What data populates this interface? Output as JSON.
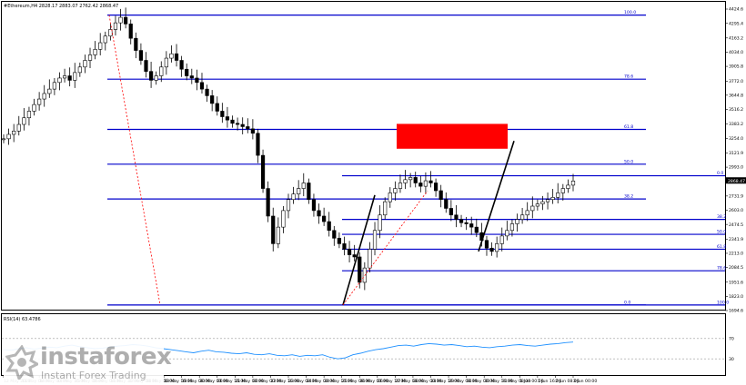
{
  "header": {
    "symbol_text": "#Ethereum,H4  2828.17 2883.07 2762.42 2868.47",
    "rsi_text": "RSI(14) 63.4786"
  },
  "chart_data": [
    {
      "type": "candlestick",
      "title": "",
      "y_ticks": [
        4424.6,
        4295.4,
        4163.2,
        4034.0,
        3905.8,
        3772.0,
        3644.8,
        3516.2,
        3383.2,
        3254.0,
        3121.9,
        2993.0,
        2864.0,
        2731.9,
        2603.0,
        2474.5,
        2341.9,
        2213.0,
        2084.5,
        1951.6,
        1823.0,
        1694.6
      ],
      "x_tick_labels": [
        "12 May 2021",
        "13 May 08:00",
        "14 May 00:00",
        "14 May 16:00",
        "15 May 08:00",
        "16 May 00:00",
        "16 May 16:00",
        "17 May 08:00",
        "18 May 00:00",
        "18 May 16:00",
        "19 May 08:00",
        "20 May 00:00",
        "20 May 16:00",
        "21 May 08:00",
        "22 May 00:00",
        "22 May 16:00",
        "23 May 08:00",
        "24 May 00:00",
        "24 May 16:00",
        "25 May 08:00",
        "26 May 00:00",
        "26 May 16:00",
        "27 May 08:00",
        "28 May 00:00",
        "28 May 16:00",
        "29 May 08:00",
        "30 May 00:00",
        "30 May 16:00",
        "31 May 08:00",
        "1 Jun 00:00",
        "1 Jun 16:00",
        "2 Jun 08:00",
        "3 Jun 00:00"
      ],
      "ylim": [
        1694.6,
        4424.6
      ],
      "current_price": 2868.47,
      "close_series": [
        3250,
        3290,
        3320,
        3380,
        3440,
        3500,
        3560,
        3610,
        3660,
        3700,
        3760,
        3800,
        3820,
        3780,
        3850,
        3900,
        3960,
        4010,
        4060,
        4120,
        4180,
        4240,
        4300,
        4350,
        4290,
        4160,
        4050,
        3960,
        3860,
        3780,
        3820,
        3900,
        3980,
        4020,
        3960,
        3880,
        3820,
        3800,
        3760,
        3700,
        3640,
        3570,
        3500,
        3450,
        3420,
        3390,
        3380,
        3360,
        3340,
        3300,
        3100,
        2800,
        2550,
        2300,
        2450,
        2600,
        2700,
        2750,
        2800,
        2850,
        2700,
        2600,
        2550,
        2500,
        2420,
        2350,
        2300,
        2250,
        2200,
        2180,
        1950,
        2080,
        2250,
        2420,
        2560,
        2680,
        2760,
        2800,
        2850,
        2880,
        2900,
        2850,
        2820,
        2870,
        2850,
        2780,
        2700,
        2620,
        2560,
        2520,
        2490,
        2480,
        2450,
        2400,
        2330,
        2260,
        2230,
        2300,
        2370,
        2420,
        2480,
        2520,
        2560,
        2600,
        2640,
        2660,
        2680,
        2700,
        2720,
        2760,
        2800,
        2830,
        2868
      ],
      "fibonacci_levels": [
        {
          "label": "100.0",
          "price": 4370
        },
        {
          "label": "78.6",
          "price": 3790
        },
        {
          "label": "61.8",
          "price": 3335
        },
        {
          "label": "50.0",
          "price": 3020
        },
        {
          "label": "38.2",
          "price": 2705
        },
        {
          "label": "0.0",
          "price": 1745
        }
      ],
      "fibonacci_levels_right": [
        {
          "label": "0.0",
          "price": 2915
        },
        {
          "label": "38.2",
          "price": 2520
        },
        {
          "label": "50.0",
          "price": 2385
        },
        {
          "label": "61.8",
          "price": 2250
        },
        {
          "label": "78.6",
          "price": 2055
        },
        {
          "label": "100.0",
          "price": 1745
        }
      ],
      "target_zone": {
        "price_low": 3160,
        "price_high": 3385
      },
      "price_label": "2868.47"
    },
    {
      "type": "line",
      "title": "",
      "y_ticks": [
        70,
        30
      ],
      "ylim": [
        0,
        100
      ],
      "levels": [
        70,
        30
      ],
      "values": [
        48,
        47,
        50,
        52,
        49,
        51,
        53,
        52,
        55,
        57,
        54,
        52,
        50,
        51,
        53,
        55,
        56,
        58,
        57,
        55,
        52,
        50,
        48,
        46,
        44,
        42,
        45,
        47,
        44,
        43,
        41,
        40,
        42,
        39,
        38,
        40,
        37,
        36,
        38,
        35,
        37,
        36,
        38,
        33,
        30,
        32,
        38,
        41,
        45,
        48,
        50,
        53,
        56,
        57,
        55,
        58,
        60,
        59,
        57,
        58,
        56,
        54,
        55,
        53,
        52,
        54,
        55,
        57,
        58,
        56,
        55,
        57,
        59,
        60,
        62,
        63
      ]
    }
  ],
  "watermark": {
    "name": "instaforex",
    "tagline": "Instant Forex Trading"
  },
  "colors": {
    "fib_line": "#0000cc",
    "target_zone": "#ff0000",
    "trend_line": "#000000",
    "rsi_line": "#1e90ff",
    "dotted_red": "#ff0000"
  }
}
